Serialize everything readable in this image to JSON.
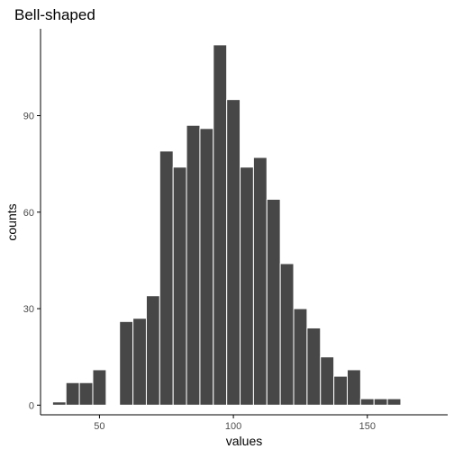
{
  "chart_data": {
    "type": "bar",
    "title": "Bell-shaped",
    "xlabel": "values",
    "ylabel": "counts",
    "xlim": [
      28,
      180
    ],
    "ylim": [
      -3,
      117
    ],
    "xticks": [
      50,
      100,
      150
    ],
    "yticks": [
      0,
      30,
      60,
      90
    ],
    "bin_width": 5,
    "bins": [
      {
        "start": 32.5,
        "count": 1
      },
      {
        "start": 37.5,
        "count": 7
      },
      {
        "start": 42.5,
        "count": 7
      },
      {
        "start": 47.5,
        "count": 11
      },
      {
        "start": 52.5,
        "count": 0
      },
      {
        "start": 57.5,
        "count": 26
      },
      {
        "start": 62.5,
        "count": 27
      },
      {
        "start": 67.5,
        "count": 34
      },
      {
        "start": 72.5,
        "count": 79
      },
      {
        "start": 77.5,
        "count": 74
      },
      {
        "start": 82.5,
        "count": 87
      },
      {
        "start": 87.5,
        "count": 86
      },
      {
        "start": 92.5,
        "count": 112
      },
      {
        "start": 97.5,
        "count": 95
      },
      {
        "start": 102.5,
        "count": 74
      },
      {
        "start": 107.5,
        "count": 77
      },
      {
        "start": 112.5,
        "count": 64
      },
      {
        "start": 117.5,
        "count": 44
      },
      {
        "start": 122.5,
        "count": 30
      },
      {
        "start": 127.5,
        "count": 24
      },
      {
        "start": 132.5,
        "count": 15
      },
      {
        "start": 137.5,
        "count": 9
      },
      {
        "start": 142.5,
        "count": 11
      },
      {
        "start": 147.5,
        "count": 2
      },
      {
        "start": 152.5,
        "count": 2
      },
      {
        "start": 157.5,
        "count": 2
      }
    ],
    "bar_color": "#474747",
    "bar_edge_color": "#ffffff",
    "axis_color": "#000000",
    "tick_label_color": "#4d4d4d",
    "grid": false
  }
}
